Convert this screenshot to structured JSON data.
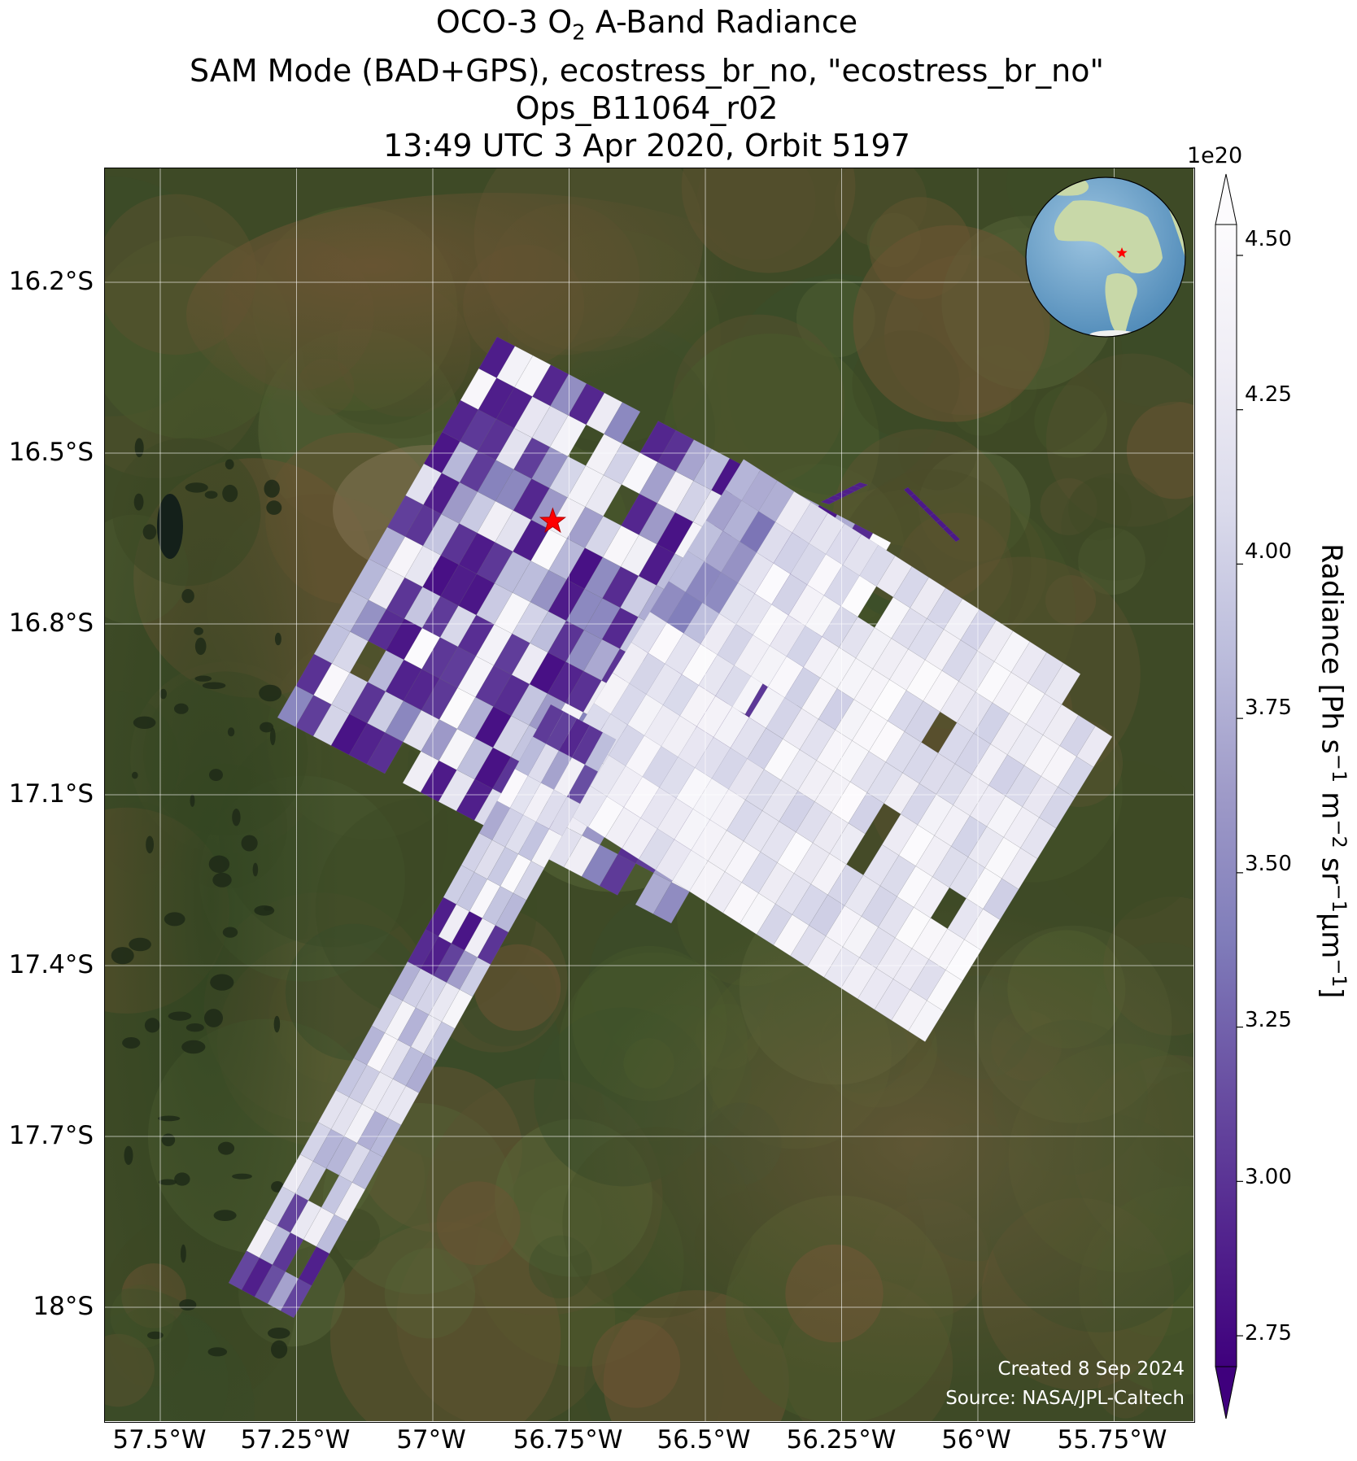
{
  "title": {
    "line1_prefix": "OCO-3 O",
    "line1_sub": "2",
    "line1_suffix": " A-Band Radiance",
    "line2": "SAM Mode (BAD+GPS), ecostress_br_no, \"ecostress_br_no\"",
    "line3": "Ops_B11064_r02",
    "line4": "13:49 UTC 3 Apr 2020, Orbit 5197"
  },
  "map": {
    "lat_labels": [
      "16.2°S",
      "16.5°S",
      "16.8°S",
      "17.1°S",
      "17.4°S",
      "17.7°S",
      "18°S"
    ],
    "lon_labels": [
      "57.5°W",
      "57.25°W",
      "57°W",
      "56.75°W",
      "56.5°W",
      "56.25°W",
      "56°W",
      "55.75°W"
    ],
    "lat_values": [
      -16.2,
      -16.5,
      -16.8,
      -17.1,
      -17.4,
      -17.7,
      -18.0
    ],
    "lon_values": [
      -57.5,
      -57.25,
      -57.0,
      -56.75,
      -56.5,
      -56.25,
      -56.0,
      -55.75
    ],
    "target_marker": {
      "lon": -56.78,
      "lat": -16.62,
      "color": "#ff0000"
    },
    "colormap": [
      "#3f007d",
      "#54278f",
      "#6a51a3",
      "#807dba",
      "#9e9ac8",
      "#bcbddc",
      "#dadaeb",
      "#efedf5",
      "#fcfbfd"
    ],
    "background_colors": [
      "#3e4a26",
      "#4a5a2c",
      "#5a5230",
      "#6b5433",
      "#3a4d2a",
      "#566437"
    ],
    "globe_colors": {
      "ocean": "#6fa8cf",
      "land": "#c8d8a8",
      "ice": "#f0f0f0"
    }
  },
  "colorbar": {
    "label_main": "Radiance [Ph s",
    "label_s_exp": "−1",
    "label_m": " m",
    "label_m_exp": "−2",
    "label_sr": " sr",
    "label_sr_exp": "−1",
    "label_um": "μm",
    "label_um_exp": "−1",
    "label_end": "]",
    "exponent": "1e20",
    "ticks": [
      "4.50",
      "4.25",
      "4.00",
      "3.75",
      "3.50",
      "3.25",
      "3.00",
      "2.75"
    ],
    "tick_values": [
      4.5,
      4.25,
      4.0,
      3.75,
      3.5,
      3.25,
      3.0,
      2.75
    ],
    "range": [
      2.7,
      4.55
    ]
  },
  "credit": {
    "line1": "Created 8 Sep 2024",
    "line2": "Source: NASA/JPL-Caltech"
  }
}
